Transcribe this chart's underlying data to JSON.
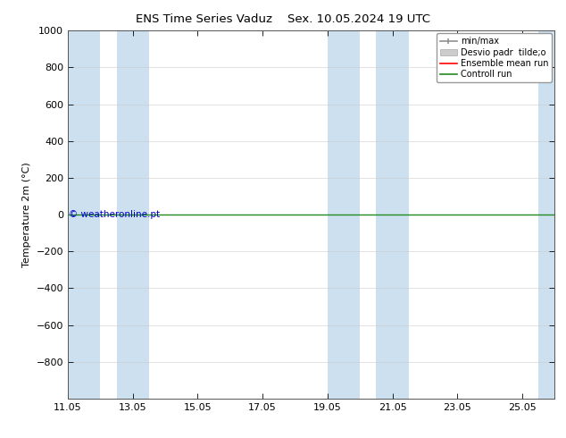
{
  "title": "ENS Time Series Vaduz",
  "title2": "Sex. 10.05.2024 19 UTC",
  "ylabel": "Temperature 2m (°C)",
  "ylim_top": -1000,
  "ylim_bottom": 1000,
  "yticks": [
    -800,
    -600,
    -400,
    -200,
    0,
    200,
    400,
    600,
    800,
    1000
  ],
  "xtick_labels": [
    "11.05",
    "13.05",
    "15.05",
    "17.05",
    "19.05",
    "21.05",
    "23.05",
    "25.05"
  ],
  "xtick_positions": [
    0,
    2,
    4,
    6,
    8,
    10,
    12,
    14
  ],
  "xlim": [
    0,
    15
  ],
  "shaded_bands": [
    [
      0.0,
      1.0
    ],
    [
      1.5,
      2.5
    ],
    [
      8.0,
      9.0
    ],
    [
      9.5,
      10.5
    ],
    [
      14.5,
      15.0
    ]
  ],
  "band_color": "#cce0f0",
  "control_run_color": "#228B22",
  "ensemble_mean_color": "#ff0000",
  "minmax_color": "#909090",
  "desvio_color": "#b8b8b8",
  "watermark": "© weatheronline.pt",
  "watermark_color": "#0000cc",
  "legend_items": [
    "min/max",
    "Desvio padr  tilde;o",
    "Ensemble mean run",
    "Controll run"
  ],
  "background_color": "#ffffff",
  "font_family": "DejaVu Sans"
}
